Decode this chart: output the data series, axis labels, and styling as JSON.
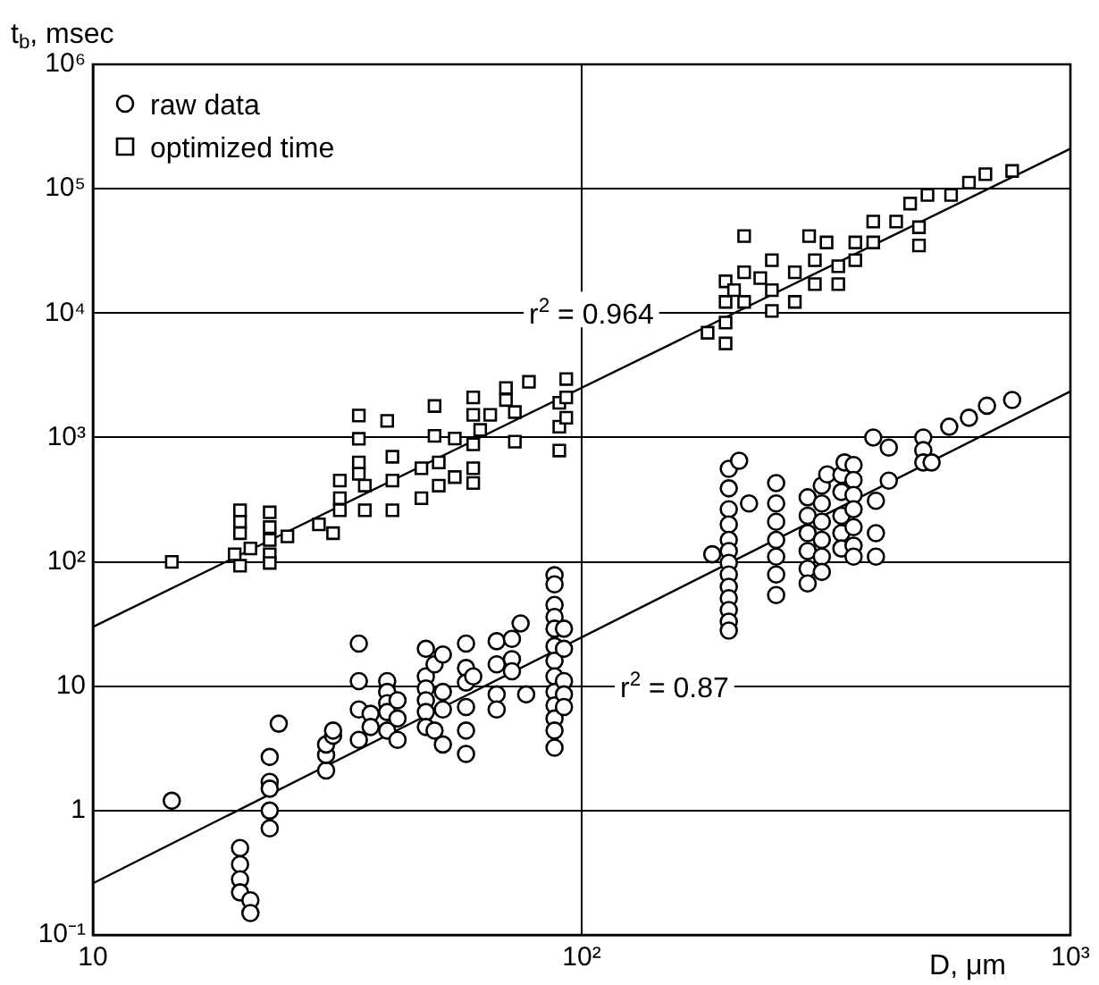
{
  "chart_data": {
    "type": "scatter",
    "xlabel": "D, μm",
    "ylabel": "t$_{b}$, msec",
    "log": "xy",
    "grid": true,
    "legend": "top left",
    "xlim": [
      10,
      1000
    ],
    "xticks": [
      10,
      {
        "value": 100,
        "label": "10²"
      },
      {
        "value": 1000,
        "label": "10³"
      }
    ],
    "ylim": [
      0.1,
      1000000
    ],
    "yticks": [
      {
        "value": 0.1,
        "label": "10⁻¹"
      },
      1,
      10,
      {
        "value": 100,
        "label": "10²"
      },
      {
        "value": 1000,
        "label": "10³"
      },
      {
        "value": 10000,
        "label": "10⁴"
      },
      {
        "value": 100000,
        "label": "10⁵"
      },
      {
        "value": 1000000,
        "label": "10⁶"
      }
    ],
    "annotations": [
      "r$^{2}$ = 0.964",
      "r$^{2}$ = 0.87"
    ],
    "series": [
      {
        "name": "raw data",
        "marker": "circle",
        "color": "#000000",
        "x": [
          14.5,
          20,
          20,
          20,
          20,
          21,
          21,
          23,
          23,
          23,
          23,
          23,
          24,
          30,
          30,
          30,
          31,
          31,
          35,
          35,
          35,
          35,
          37,
          37,
          40,
          40,
          40,
          40,
          40,
          42,
          42,
          42,
          48,
          48,
          48,
          48,
          48,
          48,
          50,
          50,
          52,
          52,
          52,
          52,
          58,
          58,
          58,
          58,
          58,
          58,
          60,
          67,
          67,
          67,
          67,
          72,
          72,
          72,
          75,
          77,
          88,
          88,
          88,
          88,
          88,
          88,
          88,
          88,
          88,
          88,
          88,
          88,
          88,
          92,
          92,
          92,
          92,
          92,
          185,
          200,
          200,
          200,
          200,
          200,
          200,
          200,
          200,
          200,
          200,
          200,
          200,
          200,
          210,
          220,
          250,
          250,
          250,
          250,
          250,
          250,
          250,
          290,
          290,
          290,
          290,
          290,
          290,
          310,
          310,
          310,
          310,
          310,
          310,
          318,
          340,
          340,
          340,
          340,
          340,
          345,
          360,
          360,
          360,
          360,
          360,
          360,
          360,
          395,
          400,
          400,
          400,
          425,
          425,
          500,
          500,
          500,
          520,
          565,
          620,
          675,
          760
        ],
        "values": [
          1.2,
          0.5,
          0.37,
          0.28,
          0.22,
          0.19,
          0.15,
          2.7,
          1.7,
          1.5,
          1.0,
          0.72,
          5,
          2.1,
          2.8,
          3.4,
          4.0,
          4.4,
          22,
          11,
          6.5,
          3.7,
          6,
          4.7,
          11,
          9,
          7.3,
          6.2,
          4.4,
          7.7,
          5.5,
          3.7,
          20,
          12,
          9.6,
          7.7,
          6.2,
          4.7,
          15,
          4.4,
          18,
          9,
          6.5,
          3.4,
          22,
          14,
          10.7,
          6.8,
          4.4,
          2.85,
          12,
          23,
          15,
          8.6,
          6.5,
          24,
          16.5,
          13.2,
          32,
          8.6,
          78,
          66,
          45,
          36,
          29,
          21,
          16,
          12,
          9,
          7,
          5.5,
          4.4,
          3.2,
          29,
          20,
          11,
          8.6,
          6.8,
          115,
          560,
          390,
          265,
          200,
          150,
          122,
          98,
          79,
          63,
          51,
          41,
          33,
          28,
          650,
          295,
          430,
          295,
          210,
          150,
          110,
          79,
          54,
          330,
          235,
          170,
          122,
          88,
          67,
          410,
          295,
          210,
          150,
          110,
          83,
          505,
          500,
          365,
          235,
          170,
          128,
          630,
          600,
          455,
          345,
          265,
          190,
          135,
          110,
          1000,
          310,
          170,
          110,
          830,
          450,
          1000,
          790,
          630,
          630,
          1220,
          1440,
          1800,
          2000
        ]
      },
      {
        "name": "optimized time",
        "marker": "square",
        "color": "#000000",
        "x": [
          14.5,
          19.5,
          20,
          20,
          20,
          20,
          21,
          23,
          23,
          23,
          23,
          23,
          25,
          29,
          31,
          32,
          32,
          32,
          35,
          35,
          35,
          35,
          36,
          36,
          40,
          41,
          41,
          41,
          47,
          47,
          50,
          50,
          51,
          51,
          55,
          55,
          60,
          60,
          60,
          60,
          60,
          62,
          65,
          70,
          70,
          73,
          73,
          78,
          90,
          90,
          90,
          93,
          93,
          93,
          181,
          197,
          197,
          197,
          197,
          205,
          215,
          215,
          215,
          232,
          245,
          245,
          245,
          273,
          273,
          292,
          300,
          300,
          317,
          335,
          335,
          363,
          363,
          395,
          395,
          440,
          470,
          490,
          490,
          510,
          570,
          620,
          670,
          760
        ],
        "values": [
          100,
          115,
          93,
          260,
          210,
          170,
          128,
          250,
          190,
          150,
          115,
          98,
          160,
          200,
          170,
          450,
          325,
          260,
          1500,
          975,
          630,
          510,
          410,
          260,
          1360,
          700,
          450,
          260,
          565,
          325,
          1790,
          1030,
          630,
          410,
          980,
          480,
          2100,
          1520,
          880,
          565,
          430,
          1150,
          1520,
          2500,
          2000,
          1600,
          925,
          2800,
          1900,
          1220,
          785,
          2950,
          2100,
          1440,
          6950,
          18000,
          12300,
          8400,
          5700,
          15300,
          41600,
          21300,
          12300,
          19100,
          26600,
          15300,
          10400,
          21300,
          12300,
          41600,
          26600,
          17100,
          37000,
          23800,
          17100,
          26600,
          37000,
          37000,
          54500,
          54500,
          76000,
          49000,
          35000,
          89000,
          89000,
          112000,
          131000,
          139000
        ]
      },
      {
        "type": "line",
        "marker": "none",
        "line_style": "solid",
        "color": "#000000",
        "x": [
          10,
          1000
        ],
        "values": [
          30,
          210000
        ]
      },
      {
        "type": "line",
        "marker": "none",
        "line_style": "solid",
        "color": "#000000",
        "x": [
          10,
          1000
        ],
        "values": [
          0.26,
          2350
        ]
      }
    ]
  }
}
